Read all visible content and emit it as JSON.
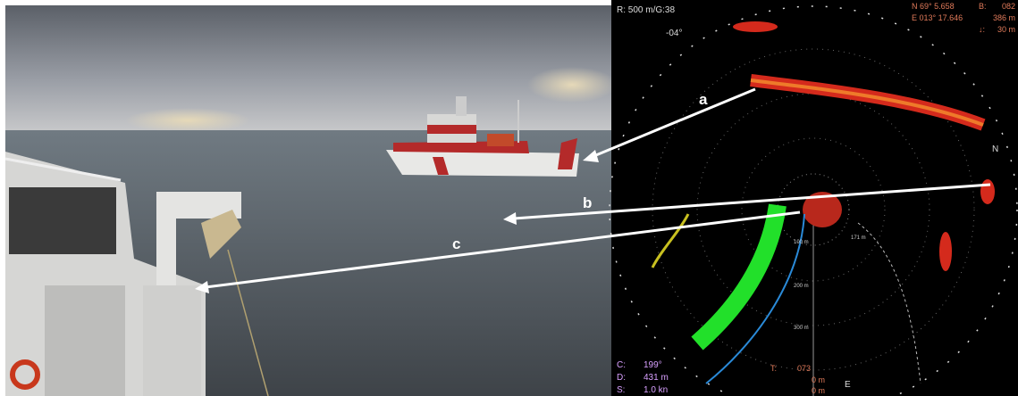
{
  "callouts": {
    "a": "a",
    "b": "b",
    "c": "c"
  },
  "sonar": {
    "range_gain": "R: 500 m/G:38",
    "heading": "-04°",
    "latitude": "N 69° 5.658",
    "bearing_label": "B:",
    "bearing_value": "082",
    "longitude": "E 013° 17.646",
    "distance_top": "386 m",
    "depth_label": "↓:",
    "depth_top": "30 m",
    "course_label": "C:",
    "course_value": "199°",
    "distance_label": "D:",
    "distance_value": "431 m",
    "speed_label": "S:",
    "speed_value": "1.0 kn",
    "tilt_label": "T:",
    "tilt_value": "073",
    "tilt_a": "0 m",
    "tilt_b": "0 m",
    "ring_100": "100 m",
    "ring_200": "200 m",
    "ring_300": "300 m",
    "marker": "171 m",
    "north": "N",
    "east": "E"
  }
}
